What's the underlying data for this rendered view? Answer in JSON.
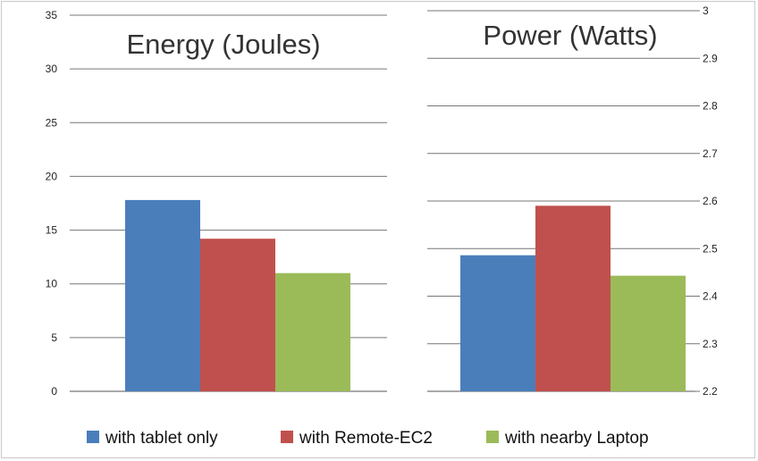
{
  "legend": [
    {
      "label": "with tablet only",
      "color": "#4a7ebb"
    },
    {
      "label": "with Remote-EC2",
      "color": "#c0504d"
    },
    {
      "label": "with nearby Laptop",
      "color": "#9bbb59"
    }
  ],
  "chart_data": [
    {
      "type": "bar",
      "title": "Energy (Joules)",
      "categories": [
        ""
      ],
      "series": [
        {
          "name": "with tablet only",
          "values": [
            17.8
          ],
          "color": "#4a7ebb"
        },
        {
          "name": "with Remote-EC2",
          "values": [
            14.2
          ],
          "color": "#c0504d"
        },
        {
          "name": "with nearby Laptop",
          "values": [
            11.0
          ],
          "color": "#9bbb59"
        }
      ],
      "ylim": [
        0,
        35
      ],
      "yticks": [
        "0",
        "5",
        "10",
        "15",
        "20",
        "25",
        "30",
        "35"
      ],
      "y_axis_side": "left",
      "grid": true
    },
    {
      "type": "bar",
      "title": "Power (Watts)",
      "categories": [
        ""
      ],
      "series": [
        {
          "name": "with tablet only",
          "values": [
            2.486
          ],
          "color": "#4a7ebb"
        },
        {
          "name": "with Remote-EC2",
          "values": [
            2.59
          ],
          "color": "#c0504d"
        },
        {
          "name": "with nearby Laptop",
          "values": [
            2.443
          ],
          "color": "#9bbb59"
        }
      ],
      "ylim": [
        2.2,
        3.0
      ],
      "yticks": [
        "2.2",
        "2.3",
        "2.4",
        "2.5",
        "2.6",
        "2.7",
        "2.8",
        "2.9",
        "3"
      ],
      "y_axis_side": "right",
      "grid": true
    }
  ]
}
